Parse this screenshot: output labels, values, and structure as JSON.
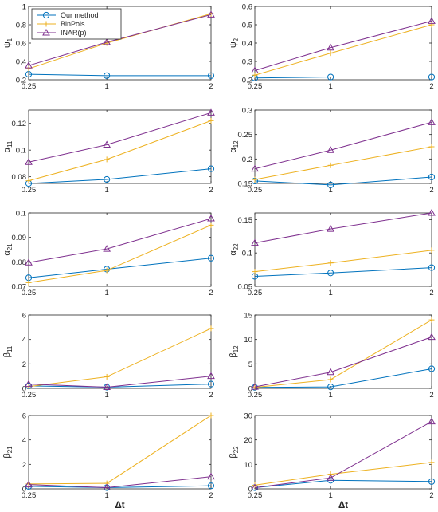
{
  "figure": {
    "x_axis_label": "Δt",
    "legend": {
      "placement": "top-left",
      "entries": [
        "Our method",
        "BinPois",
        "INAR(p)"
      ]
    },
    "colors": {
      "ours": "#0072BD",
      "binpois": "#EDB120",
      "inar": "#7E2F8E"
    }
  },
  "chart_data": [
    {
      "type": "line",
      "ylabel": "ψ",
      "ylabel_sub": "1",
      "x": [
        0.25,
        1,
        2
      ],
      "xticks": [
        "0.25",
        "1",
        "2"
      ],
      "ylim": [
        0.2,
        1.0
      ],
      "yticks": [
        "0.2",
        "0.4",
        "0.6",
        "0.8",
        "1"
      ],
      "series": [
        {
          "name": "Our method",
          "values": [
            0.26,
            0.245,
            0.245
          ]
        },
        {
          "name": "BinPois",
          "values": [
            0.32,
            0.6,
            0.92
          ]
        },
        {
          "name": "INAR(p)",
          "values": [
            0.355,
            0.61,
            0.91
          ]
        }
      ]
    },
    {
      "type": "line",
      "ylabel": "ψ",
      "ylabel_sub": "2",
      "x": [
        0.25,
        1,
        2
      ],
      "xticks": [
        "0.25",
        "1",
        "2"
      ],
      "ylim": [
        0.2,
        0.6
      ],
      "yticks": [
        "0.2",
        "0.3",
        "0.4",
        "0.5",
        "0.6"
      ],
      "series": [
        {
          "name": "Our method",
          "values": [
            0.21,
            0.215,
            0.215
          ]
        },
        {
          "name": "BinPois",
          "values": [
            0.225,
            0.345,
            0.5
          ]
        },
        {
          "name": "INAR(p)",
          "values": [
            0.25,
            0.375,
            0.52
          ]
        }
      ]
    },
    {
      "type": "line",
      "ylabel": "α",
      "ylabel_sub": "11",
      "x": [
        0.25,
        1,
        2
      ],
      "xticks": [
        "0.25",
        "1",
        "2"
      ],
      "ylim": [
        0.075,
        0.13
      ],
      "yticks": [
        "0.08",
        "0.1",
        "0.12"
      ],
      "series": [
        {
          "name": "Our method",
          "values": [
            0.075,
            0.078,
            0.086
          ]
        },
        {
          "name": "BinPois",
          "values": [
            0.077,
            0.093,
            0.122
          ]
        },
        {
          "name": "INAR(p)",
          "values": [
            0.091,
            0.104,
            0.128
          ]
        }
      ]
    },
    {
      "type": "line",
      "ylabel": "α",
      "ylabel_sub": "12",
      "x": [
        0.25,
        1,
        2
      ],
      "xticks": [
        "0.25",
        "1",
        "2"
      ],
      "ylim": [
        0.15,
        0.3
      ],
      "yticks": [
        "0.15",
        "0.2",
        "0.25",
        "0.3"
      ],
      "series": [
        {
          "name": "Our method",
          "values": [
            0.155,
            0.147,
            0.163
          ]
        },
        {
          "name": "BinPois",
          "values": [
            0.158,
            0.187,
            0.225
          ]
        },
        {
          "name": "INAR(p)",
          "values": [
            0.18,
            0.218,
            0.275
          ]
        }
      ]
    },
    {
      "type": "line",
      "ylabel": "α",
      "ylabel_sub": "21",
      "x": [
        0.25,
        1,
        2
      ],
      "xticks": [
        "0.25",
        "1",
        "2"
      ],
      "ylim": [
        0.07,
        0.1
      ],
      "yticks": [
        "0.07",
        "0.08",
        "0.09",
        "0.1"
      ],
      "series": [
        {
          "name": "Our method",
          "values": [
            0.0735,
            0.077,
            0.0815
          ]
        },
        {
          "name": "BinPois",
          "values": [
            0.0715,
            0.0765,
            0.095
          ]
        },
        {
          "name": "INAR(p)",
          "values": [
            0.0797,
            0.0853,
            0.0977
          ]
        }
      ]
    },
    {
      "type": "line",
      "ylabel": "α",
      "ylabel_sub": "22",
      "x": [
        0.25,
        1,
        2
      ],
      "xticks": [
        "0.25",
        "1",
        "2"
      ],
      "ylim": [
        0.05,
        0.16
      ],
      "yticks": [
        "0.05",
        "0.1",
        "0.15"
      ],
      "series": [
        {
          "name": "Our method",
          "values": [
            0.065,
            0.07,
            0.078
          ]
        },
        {
          "name": "BinPois",
          "values": [
            0.072,
            0.085,
            0.104
          ]
        },
        {
          "name": "INAR(p)",
          "values": [
            0.115,
            0.136,
            0.16
          ]
        }
      ]
    },
    {
      "type": "line",
      "ylabel": "β",
      "ylabel_sub": "11",
      "x": [
        0.25,
        1,
        2
      ],
      "xticks": [
        "0.25",
        "1",
        "2"
      ],
      "ylim": [
        0,
        6
      ],
      "yticks": [
        "0",
        "2",
        "4",
        "6"
      ],
      "series": [
        {
          "name": "Our method",
          "values": [
            0.2,
            0.1,
            0.35
          ]
        },
        {
          "name": "BinPois",
          "values": [
            0.15,
            0.95,
            4.9
          ]
        },
        {
          "name": "INAR(p)",
          "values": [
            0.35,
            0.1,
            1.0
          ]
        }
      ]
    },
    {
      "type": "line",
      "ylabel": "β",
      "ylabel_sub": "12",
      "x": [
        0.25,
        1,
        2
      ],
      "xticks": [
        "0.25",
        "1",
        "2"
      ],
      "ylim": [
        0,
        15
      ],
      "yticks": [
        "0",
        "5",
        "10",
        "15"
      ],
      "series": [
        {
          "name": "Our method",
          "values": [
            0.2,
            0.3,
            4.0
          ]
        },
        {
          "name": "BinPois",
          "values": [
            0.2,
            1.8,
            14.0
          ]
        },
        {
          "name": "INAR(p)",
          "values": [
            0.3,
            3.3,
            10.5
          ]
        }
      ]
    },
    {
      "type": "line",
      "ylabel": "β",
      "ylabel_sub": "21",
      "x": [
        0.25,
        1,
        2
      ],
      "xticks": [
        "0.25",
        "1",
        "2"
      ],
      "ylim": [
        0,
        6
      ],
      "yticks": [
        "0",
        "2",
        "4",
        "6"
      ],
      "series": [
        {
          "name": "Our method",
          "values": [
            0.2,
            0.1,
            0.25
          ]
        },
        {
          "name": "BinPois",
          "values": [
            0.4,
            0.45,
            6.0
          ]
        },
        {
          "name": "INAR(p)",
          "values": [
            0.35,
            0.1,
            1.0
          ]
        }
      ]
    },
    {
      "type": "line",
      "ylabel": "β",
      "ylabel_sub": "22",
      "x": [
        0.25,
        1,
        2
      ],
      "xticks": [
        "0.25",
        "1",
        "2"
      ],
      "ylim": [
        0,
        30
      ],
      "yticks": [
        "0",
        "10",
        "20",
        "30"
      ],
      "series": [
        {
          "name": "Our method",
          "values": [
            0.5,
            3.5,
            3.0
          ]
        },
        {
          "name": "BinPois",
          "values": [
            1.5,
            6.0,
            10.8
          ]
        },
        {
          "name": "INAR(p)",
          "values": [
            0.5,
            4.5,
            27.5
          ]
        }
      ]
    }
  ]
}
